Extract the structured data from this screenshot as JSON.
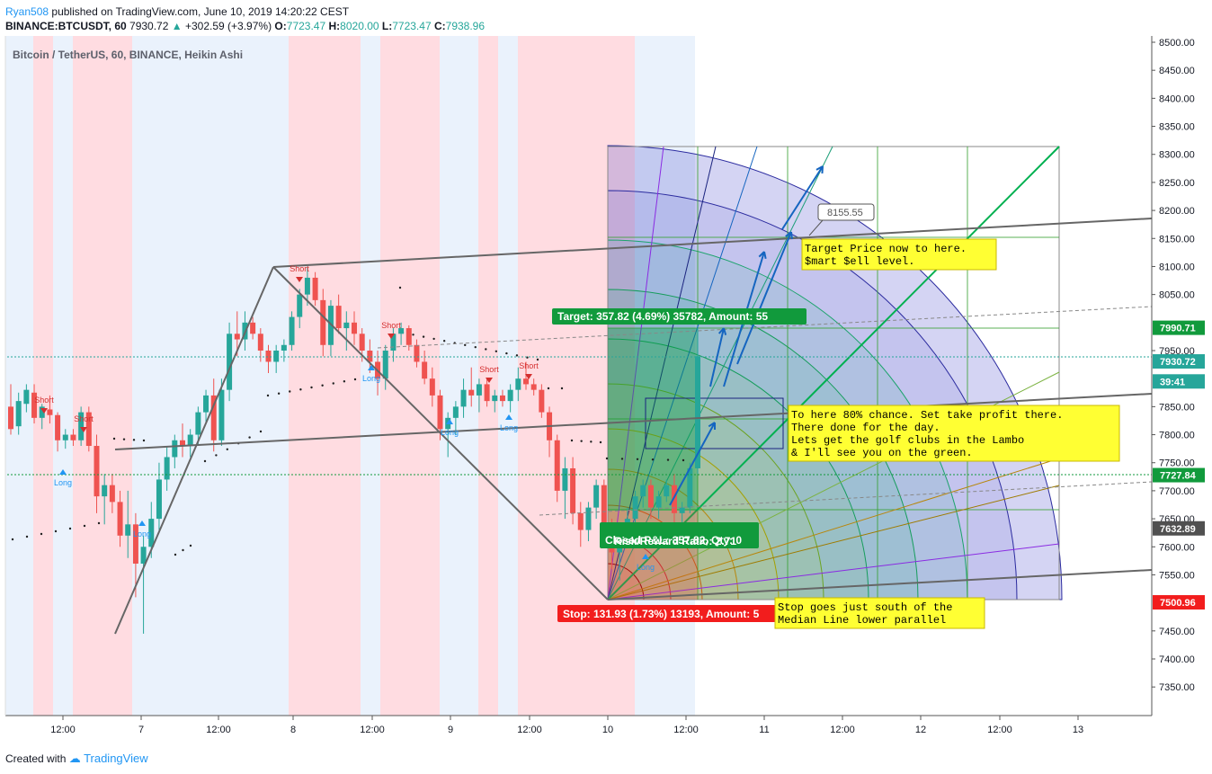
{
  "header": {
    "author": "Ryan508",
    "published": "published on TradingView.com, June 10, 2019 14:20:22 CEST",
    "symbol": "BINANCE:BTCUSDT, 60",
    "last": "7930.72",
    "change_arrow": "▲",
    "change": "+302.59 (+3.97%)",
    "o_label": "O:",
    "o": "7723.47",
    "h_label": "H:",
    "h": "8020.00",
    "l_label": "L:",
    "l": "7723.47",
    "c_label": "C:",
    "c": "7938.96"
  },
  "chart_title": "Bitcoin / TetherUS, 60, BINANCE, Heikin Ashi",
  "footer": {
    "created_with": "Created with",
    "brand": "TradingView"
  },
  "colors": {
    "up": "#26a69a",
    "down": "#ef5350",
    "red_zone": "#ffd6dc",
    "blue_zone": "#e6f0fc",
    "pitchfork": "#666666",
    "fan_green": "#00b050",
    "target_green": "#119a3c",
    "stop_red": "#f21d1d",
    "note_yellow": "#ffff33"
  },
  "chart_data": {
    "type": "candlestick",
    "chart_style": "Heikin Ashi",
    "y_range": [
      7280,
      8510
    ],
    "y_ticks": [
      "8500.00",
      "8450.00",
      "8400.00",
      "8350.00",
      "8300.00",
      "8250.00",
      "8200.00",
      "8150.00",
      "8100.00",
      "8050.00",
      "7950.00",
      "7850.00",
      "7800.00",
      "7750.00",
      "7700.00",
      "7650.00",
      "7600.00",
      "7550.00",
      "7450.00",
      "7400.00",
      "7350.00"
    ],
    "x_range": [
      "Jun 6 08:00",
      "Jun 13 16:00"
    ],
    "x_ticks": [
      "12:00",
      "7",
      "12:00",
      "8",
      "12:00",
      "9",
      "12:00",
      "10",
      "12:00",
      "11",
      "12:00",
      "12",
      "12:00",
      "13"
    ],
    "price_labels": [
      {
        "text": "7990.71",
        "value": 7990.71,
        "color": "#119a3c"
      },
      {
        "text": "7930.72",
        "value": 7930.72,
        "color": "#26a69a"
      },
      {
        "text": "39:41",
        "value": 7895,
        "color": "#26a69a"
      },
      {
        "text": "7727.84",
        "value": 7727.84,
        "color": "#119a3c"
      },
      {
        "text": "7632.89",
        "value": 7632.89,
        "color": "#505050"
      },
      {
        "text": "7500.96",
        "value": 7500.96,
        "color": "#f21d1d"
      }
    ],
    "candles": [
      [
        7850,
        7890,
        7800,
        7810
      ],
      [
        7815,
        7875,
        7800,
        7860
      ],
      [
        7855,
        7890,
        7840,
        7880
      ],
      [
        7875,
        7890,
        7820,
        7830
      ],
      [
        7830,
        7855,
        7810,
        7850
      ],
      [
        7845,
        7870,
        7820,
        7835
      ],
      [
        7835,
        7840,
        7770,
        7790
      ],
      [
        7790,
        7810,
        7775,
        7800
      ],
      [
        7800,
        7810,
        7780,
        7790
      ],
      [
        7790,
        7850,
        7780,
        7840
      ],
      [
        7840,
        7850,
        7770,
        7780
      ],
      [
        7780,
        7800,
        7660,
        7690
      ],
      [
        7690,
        7730,
        7640,
        7710
      ],
      [
        7710,
        7730,
        7660,
        7680
      ],
      [
        7680,
        7700,
        7600,
        7620
      ],
      [
        7620,
        7700,
        7580,
        7640
      ],
      [
        7640,
        7660,
        7510,
        7570
      ],
      [
        7570,
        7620,
        7445,
        7600
      ],
      [
        7600,
        7680,
        7580,
        7650
      ],
      [
        7650,
        7750,
        7630,
        7720
      ],
      [
        7720,
        7780,
        7700,
        7760
      ],
      [
        7760,
        7800,
        7740,
        7790
      ],
      [
        7790,
        7820,
        7760,
        7780
      ],
      [
        7780,
        7810,
        7760,
        7800
      ],
      [
        7800,
        7850,
        7780,
        7840
      ],
      [
        7840,
        7880,
        7820,
        7870
      ],
      [
        7870,
        7900,
        7770,
        7790
      ],
      [
        7790,
        7900,
        7780,
        7880
      ],
      [
        7880,
        8000,
        7860,
        7980
      ],
      [
        7980,
        8020,
        7940,
        7970
      ],
      [
        7970,
        8020,
        7950,
        8000
      ],
      [
        8000,
        8010,
        7970,
        7980
      ],
      [
        7980,
        7990,
        7930,
        7950
      ],
      [
        7950,
        7960,
        7910,
        7930
      ],
      [
        7930,
        7960,
        7910,
        7950
      ],
      [
        7950,
        7970,
        7930,
        7960
      ],
      [
        7960,
        8020,
        7950,
        8010
      ],
      [
        8010,
        8060,
        7990,
        8050
      ],
      [
        8050,
        8100,
        8030,
        8080
      ],
      [
        8080,
        8090,
        8030,
        8040
      ],
      [
        8040,
        8060,
        7940,
        7960
      ],
      [
        7960,
        8040,
        7940,
        8030
      ],
      [
        8030,
        8050,
        7980,
        7990
      ],
      [
        7990,
        8020,
        7950,
        8000
      ],
      [
        8000,
        8020,
        7960,
        7980
      ],
      [
        7980,
        7990,
        7930,
        7950
      ],
      [
        7950,
        7970,
        7910,
        7930
      ],
      [
        7930,
        7950,
        7870,
        7900
      ],
      [
        7900,
        7960,
        7880,
        7950
      ],
      [
        7950,
        7990,
        7930,
        7980
      ],
      [
        7980,
        8000,
        7960,
        7990
      ],
      [
        7990,
        7995,
        7950,
        7960
      ],
      [
        7960,
        7970,
        7920,
        7930
      ],
      [
        7930,
        7950,
        7890,
        7900
      ],
      [
        7900,
        7920,
        7850,
        7870
      ],
      [
        7870,
        7880,
        7790,
        7810
      ],
      [
        7810,
        7840,
        7760,
        7830
      ],
      [
        7830,
        7860,
        7800,
        7850
      ],
      [
        7850,
        7900,
        7830,
        7880
      ],
      [
        7880,
        7920,
        7850,
        7870
      ],
      [
        7870,
        7900,
        7840,
        7890
      ],
      [
        7890,
        7900,
        7850,
        7860
      ],
      [
        7860,
        7880,
        7840,
        7870
      ],
      [
        7870,
        7880,
        7850,
        7860
      ],
      [
        7860,
        7890,
        7840,
        7880
      ],
      [
        7880,
        7920,
        7860,
        7900
      ],
      [
        7900,
        7930,
        7880,
        7890
      ],
      [
        7890,
        7900,
        7870,
        7880
      ],
      [
        7880,
        7890,
        7830,
        7840
      ],
      [
        7840,
        7850,
        7760,
        7790
      ],
      [
        7790,
        7800,
        7680,
        7700
      ],
      [
        7700,
        7760,
        7650,
        7740
      ],
      [
        7740,
        7760,
        7640,
        7660
      ],
      [
        7660,
        7680,
        7600,
        7630
      ],
      [
        7630,
        7680,
        7610,
        7670
      ],
      [
        7670,
        7720,
        7650,
        7710
      ],
      [
        7710,
        7720,
        7620,
        7640
      ],
      [
        7640,
        7650,
        7560,
        7590
      ],
      [
        7590,
        7640,
        7540,
        7620
      ],
      [
        7620,
        7670,
        7600,
        7650
      ],
      [
        7650,
        7700,
        7640,
        7690
      ],
      [
        7690,
        7720,
        7670,
        7710
      ],
      [
        7710,
        7720,
        7650,
        7670
      ],
      [
        7670,
        7700,
        7650,
        7690
      ],
      [
        7690,
        7720,
        7680,
        7710
      ],
      [
        7710,
        7730,
        7640,
        7660
      ],
      [
        7660,
        7680,
        7640,
        7670
      ],
      [
        7670,
        7750,
        7660,
        7740
      ],
      [
        7740,
        7990,
        7730,
        7940
      ]
    ]
  },
  "annotations": {
    "target": "Target: 357.82 (4.69%) 35782, Amount: 55",
    "stop": "Stop: 131.93 (1.73%) 13193, Amount: 5",
    "closed": "Closed P&L: 357.82, Qty: 0",
    "rr": "Risk/Reward Ratio: 2.71",
    "price_callout": "8155.55",
    "note1": [
      "Target Price now to here.",
      "$mart $ell level."
    ],
    "note2": [
      "To here 80% chance.  Set take profit there.",
      "There done for the day.",
      "Lets get the golf clubs in the Lambo",
      "& I'll see you on the green."
    ],
    "note3": [
      "Stop goes just south of the",
      "Median Line lower parallel"
    ],
    "signals": [
      {
        "label": "Short",
        "x": 49,
        "y": 448
      },
      {
        "label": "Short",
        "x": 93,
        "y": 469
      },
      {
        "label": "Short",
        "x": 333,
        "y": 302
      },
      {
        "label": "Short",
        "x": 435,
        "y": 365
      },
      {
        "label": "Short",
        "x": 544,
        "y": 414
      },
      {
        "label": "Short",
        "x": 588,
        "y": 410
      },
      {
        "label": "Long",
        "x": 70,
        "y": 528
      },
      {
        "label": "Long",
        "x": 158,
        "y": 585
      },
      {
        "label": "Long",
        "x": 413,
        "y": 412
      },
      {
        "label": "Long",
        "x": 500,
        "y": 472
      },
      {
        "label": "Long",
        "x": 566,
        "y": 467
      },
      {
        "label": "Long",
        "x": 718,
        "y": 622
      }
    ]
  }
}
